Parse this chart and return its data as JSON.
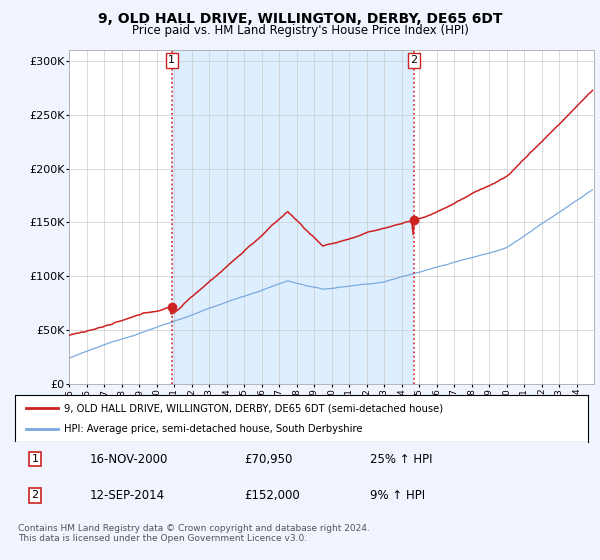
{
  "title": "9, OLD HALL DRIVE, WILLINGTON, DERBY, DE65 6DT",
  "subtitle": "Price paid vs. HM Land Registry's House Price Index (HPI)",
  "background_color": "#f0f4ff",
  "plot_bg_color": "#ffffff",
  "shade_color": "#ddeeff",
  "ylim": [
    0,
    310000
  ],
  "yticks": [
    0,
    50000,
    100000,
    150000,
    200000,
    250000,
    300000
  ],
  "ytick_labels": [
    "£0",
    "£50K",
    "£100K",
    "£150K",
    "£200K",
    "£250K",
    "£300K"
  ],
  "x_start_year": 1995,
  "x_end_year": 2024,
  "sale1_price": 70950,
  "sale1_date": "16-NOV-2000",
  "sale1_hpi_pct": "25% ↑ HPI",
  "sale2_price": 152000,
  "sale2_date": "12-SEP-2014",
  "sale2_hpi_pct": "9% ↑ HPI",
  "red_line_color": "#cc2222",
  "blue_line_color": "#7aaadd",
  "vline_color": "#cc2222",
  "grid_color": "#cccccc",
  "legend_label_red": "9, OLD HALL DRIVE, WILLINGTON, DERBY, DE65 6DT (semi-detached house)",
  "legend_label_blue": "HPI: Average price, semi-detached house, South Derbyshire",
  "footer_text": "Contains HM Land Registry data © Crown copyright and database right 2024.\nThis data is licensed under the Open Government Licence v3.0."
}
